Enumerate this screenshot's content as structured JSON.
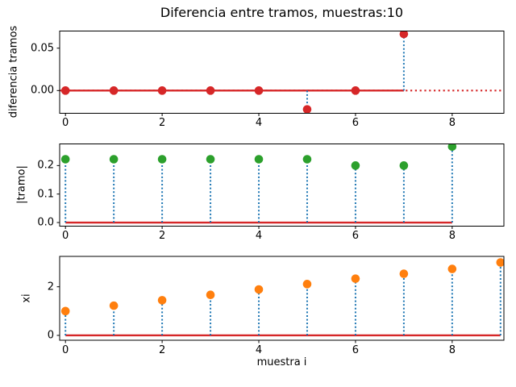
{
  "figure": {
    "background": "#ffffff",
    "spine_color": "#000000",
    "text_color": "#000000"
  },
  "chart_data": [
    {
      "type": "stem",
      "name": "diferencia-tramos",
      "title": "Diferencia entre tramos, muestras:10",
      "ylabel": "diferencia tramos",
      "x": [
        0,
        1,
        2,
        3,
        4,
        5,
        6,
        7
      ],
      "values": [
        0,
        0,
        0,
        0,
        0,
        -0.0222,
        0,
        0.0667
      ],
      "xlim": [
        -0.12,
        9.07
      ],
      "ylim": [
        -0.0268,
        0.0702
      ],
      "xticks": [
        0,
        2,
        4,
        6,
        8
      ],
      "xtick_labels": [
        "0",
        "2",
        "4",
        "6",
        "8"
      ],
      "yticks": [
        0,
        0.05
      ],
      "ytick_labels": [
        "0.00",
        "0.05"
      ],
      "marker_color": "#d62728",
      "stem_color": "#1f77b4",
      "stem_style": "dotted",
      "baseline": {
        "from": 0,
        "to": 7,
        "color": "#d62728"
      },
      "axhline": {
        "y": 0,
        "color": "#d62728",
        "linestyle": "dotted"
      },
      "grid": false,
      "legend": null
    },
    {
      "type": "stem",
      "name": "tramo-abs",
      "title": "",
      "ylabel": "|tramo|",
      "x": [
        0,
        1,
        2,
        3,
        4,
        5,
        6,
        7,
        8
      ],
      "values": [
        0.2222,
        0.2222,
        0.2222,
        0.2222,
        0.2222,
        0.2222,
        0.2,
        0.2,
        0.2667
      ],
      "xlim": [
        -0.12,
        9.07
      ],
      "ylim": [
        -0.0127,
        0.276
      ],
      "xticks": [
        0,
        2,
        4,
        6,
        8
      ],
      "xtick_labels": [
        "0",
        "2",
        "4",
        "6",
        "8"
      ],
      "yticks": [
        0,
        0.1,
        0.2
      ],
      "ytick_labels": [
        "0.0",
        "0.1",
        "0.2"
      ],
      "marker_color": "#2ca02c",
      "stem_color": "#1f77b4",
      "stem_style": "dotted",
      "baseline": {
        "from": 0,
        "to": 8,
        "color": "#d62728"
      },
      "axhline": null,
      "grid": false,
      "legend": null
    },
    {
      "type": "stem",
      "name": "xi",
      "title": "",
      "ylabel": "xi",
      "xlabel": "muestra i",
      "x": [
        0,
        1,
        2,
        3,
        4,
        5,
        6,
        7,
        8,
        9
      ],
      "values": [
        1.0,
        1.2222,
        1.4444,
        1.6667,
        1.8889,
        2.1111,
        2.3333,
        2.5333,
        2.7333,
        3.0
      ],
      "xlim": [
        -0.12,
        9.07
      ],
      "ylim": [
        -0.2,
        3.25
      ],
      "xticks": [
        0,
        2,
        4,
        6,
        8
      ],
      "xtick_labels": [
        "0",
        "2",
        "4",
        "6",
        "8"
      ],
      "yticks": [
        0,
        2
      ],
      "ytick_labels": [
        "0",
        "2"
      ],
      "marker_color": "#ff7f0e",
      "stem_color": "#1f77b4",
      "stem_style": "dotted",
      "baseline": {
        "from": 0,
        "to": 9,
        "color": "#d62728"
      },
      "axhline": null,
      "grid": false,
      "legend": null
    }
  ]
}
